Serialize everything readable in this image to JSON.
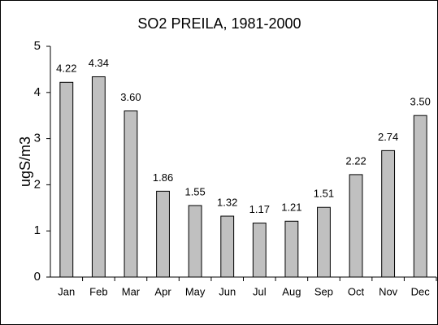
{
  "chart_data": {
    "type": "bar",
    "title": "SO2 PREILA, 1981-2000",
    "y_label": "ugS/m3",
    "categories": [
      "Jan",
      "Feb",
      "Mar",
      "Apr",
      "May",
      "Jun",
      "Jul",
      "Aug",
      "Sep",
      "Oct",
      "Nov",
      "Dec"
    ],
    "values": [
      4.22,
      4.34,
      3.6,
      1.86,
      1.55,
      1.32,
      1.17,
      1.21,
      1.51,
      2.22,
      2.74,
      3.5
    ],
    "value_labels": [
      "4.22",
      "4.34",
      "3.60",
      "1.86",
      "1.55",
      "1.32",
      "1.17",
      "1.21",
      "1.51",
      "2.22",
      "2.74",
      "3.50"
    ],
    "color": "#c0c0c0",
    "ylim": [
      0,
      5
    ],
    "yticks": [
      0,
      1,
      2,
      3,
      4,
      5
    ],
    "grid": false
  }
}
